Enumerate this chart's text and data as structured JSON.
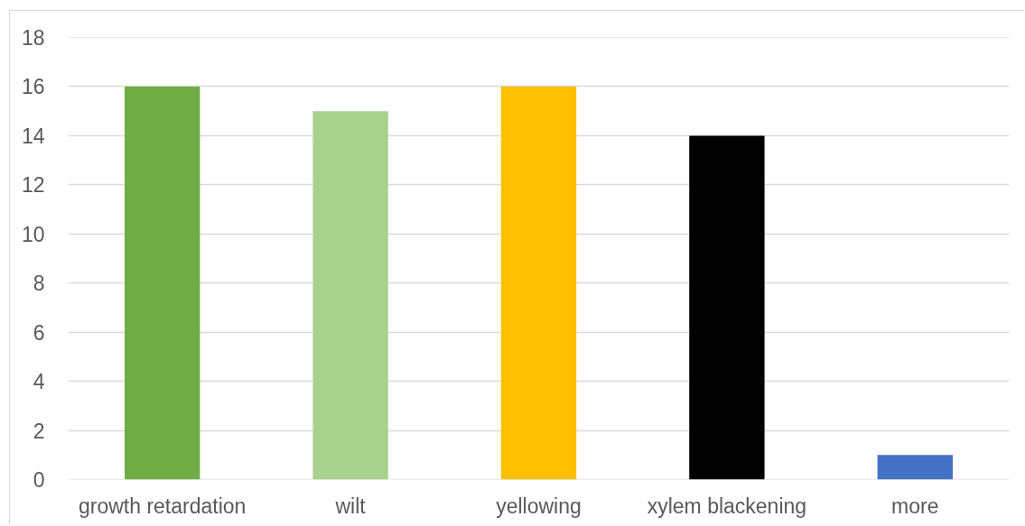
{
  "chart_data": {
    "type": "bar",
    "categories": [
      "growth retardation",
      "wilt",
      "yellowing",
      "xylem blackening",
      "more"
    ],
    "values": [
      16,
      15,
      16,
      14,
      1
    ],
    "colors": [
      "#70ad47",
      "#a9d18e",
      "#ffc000",
      "#000000",
      "#4472c4"
    ],
    "ylim": [
      0,
      18
    ],
    "yticks": [
      0,
      2,
      4,
      6,
      8,
      10,
      12,
      14,
      16,
      18
    ],
    "grid": "y"
  }
}
